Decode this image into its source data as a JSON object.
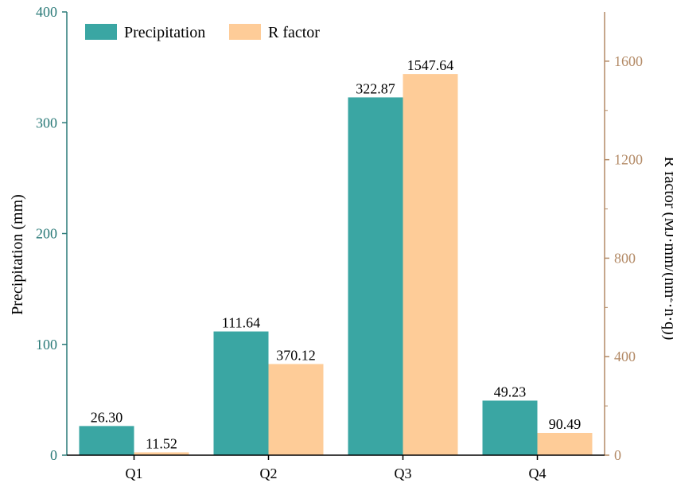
{
  "chart_data": {
    "type": "bar",
    "categories": [
      "Q1",
      "Q2",
      "Q3",
      "Q4"
    ],
    "series": [
      {
        "name": "Precipitation",
        "axis": "left",
        "values": [
          26.3,
          111.64,
          322.87,
          49.23
        ],
        "labels": [
          "26.30",
          "111.64",
          "322.87",
          "49.23"
        ],
        "color": "#3aa6a3"
      },
      {
        "name": "R factor",
        "axis": "right",
        "values": [
          11.52,
          370.12,
          1547.64,
          90.49
        ],
        "labels": [
          "11.52",
          "370.12",
          "1547.64",
          "90.49"
        ],
        "color": "#fecc98"
      }
    ],
    "ylabel": "Precipitation (mm)",
    "y2label_parts": [
      "R factor (MJ·mm/(hm",
      "2",
      "·h·q))"
    ],
    "ylim": [
      0,
      400
    ],
    "y2lim": [
      0,
      1800
    ],
    "yticks": [
      0,
      100,
      200,
      300,
      400
    ],
    "y2ticks": [
      0,
      400,
      800,
      1200,
      1600
    ],
    "left_axis_color": "#2a7a78",
    "right_axis_color": "#b38a66",
    "legend_position": "top-left",
    "grid": false
  }
}
